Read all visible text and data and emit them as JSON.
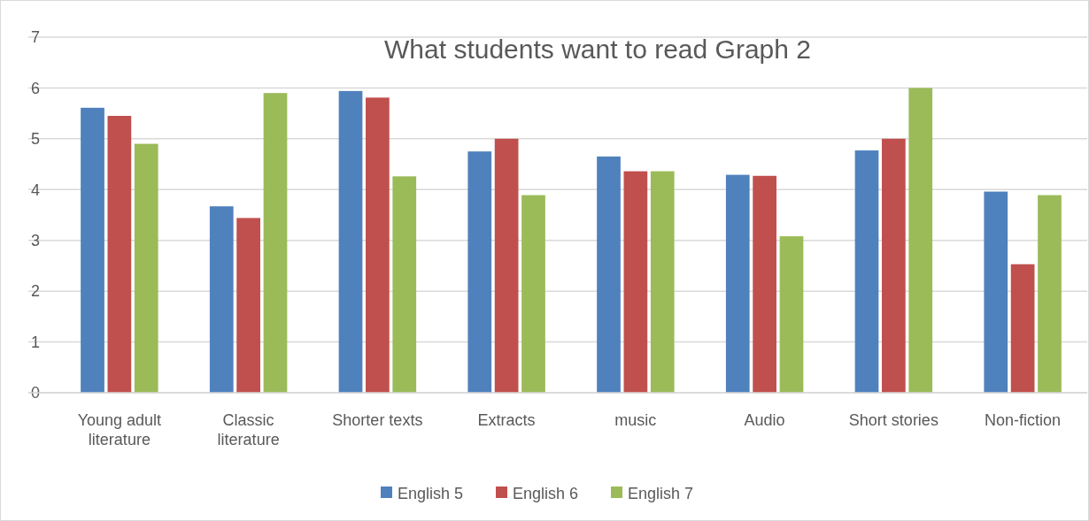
{
  "chart_data": {
    "type": "bar",
    "title": "What students want to read Graph 2",
    "categories": [
      "Young adult literature",
      "Classic literature",
      "Shorter texts",
      "Extracts",
      "music",
      "Audio",
      "Short stories",
      "Non-fiction"
    ],
    "series": [
      {
        "name": "English 5",
        "color": "#4f81bd",
        "values": [
          5.61,
          3.67,
          5.94,
          4.75,
          4.65,
          4.29,
          4.77,
          3.96
        ]
      },
      {
        "name": "English 6",
        "color": "#c0504d",
        "values": [
          5.45,
          3.44,
          5.81,
          5.0,
          4.36,
          4.27,
          5.0,
          2.53
        ]
      },
      {
        "name": "English 7",
        "color": "#9bbb59",
        "values": [
          4.9,
          5.9,
          4.26,
          3.89,
          4.36,
          3.08,
          6.0,
          3.89
        ]
      }
    ],
    "ylim": [
      0,
      7
    ],
    "yticks": [
      0,
      1,
      2,
      3,
      4,
      5,
      6,
      7
    ],
    "grid": "y",
    "legend": "bottom"
  }
}
